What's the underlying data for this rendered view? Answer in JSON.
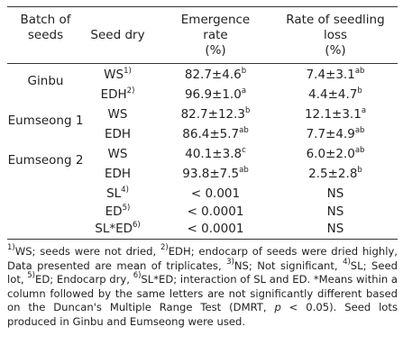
{
  "headers": {
    "batch_l1": "Batch of",
    "batch_l2": "seeds",
    "seed_dry": "Seed dry",
    "emergence_l1": "Emergence",
    "emergence_l2": "rate",
    "emergence_unit": "(%)",
    "loss_l1": "Rate of seedling",
    "loss_l2": "loss",
    "loss_unit": "(%)"
  },
  "rows": [
    {
      "batch": "Ginbu",
      "dry": "WS",
      "dry_sup": "1)",
      "emergence": "82.7±4.6",
      "emergence_sup": "b",
      "loss": "7.4±3.1",
      "loss_sup": "ab"
    },
    {
      "batch": "",
      "dry": "EDH",
      "dry_sup": "2)",
      "emergence": "96.9±1.0",
      "emergence_sup": "a",
      "loss": "4.4±4.7",
      "loss_sup": "b"
    },
    {
      "batch": "Eumseong 1",
      "dry": "WS",
      "dry_sup": "",
      "emergence": "82.7±12.3",
      "emergence_sup": "b",
      "loss": "12.1±3.1",
      "loss_sup": "a"
    },
    {
      "batch": "",
      "dry": "EDH",
      "dry_sup": "",
      "emergence": "86.4±5.7",
      "emergence_sup": "ab",
      "loss": "7.7±4.9",
      "loss_sup": "ab"
    },
    {
      "batch": "Eumseong 2",
      "dry": "WS",
      "dry_sup": "",
      "emergence": "40.1±3.8",
      "emergence_sup": "c",
      "loss": "6.0±2.0",
      "loss_sup": "ab"
    },
    {
      "batch": "",
      "dry": "EDH",
      "dry_sup": "",
      "emergence": "93.8±7.5",
      "emergence_sup": "ab",
      "loss": "2.5±2.8",
      "loss_sup": "b"
    },
    {
      "batch": "",
      "dry": "SL",
      "dry_sup": "4)",
      "emergence": "< 0.001",
      "emergence_sup": "",
      "loss": "NS",
      "loss_sup": ""
    },
    {
      "batch": "",
      "dry": "ED",
      "dry_sup": "5)",
      "emergence": "< 0.0001",
      "emergence_sup": "",
      "loss": "NS",
      "loss_sup": ""
    },
    {
      "batch": "",
      "dry": "SL*ED",
      "dry_sup": "6)",
      "emergence": "< 0.0001",
      "emergence_sup": "",
      "loss": "NS",
      "loss_sup": ""
    }
  ],
  "footnote": {
    "s1": "1)",
    "t1": "WS; seeds were not dried, ",
    "s2": "2)",
    "t2": "EDH; endocarp of seeds were dried highly, Data presented are mean of triplicates, ",
    "s3": "3)",
    "t3": "NS; Not significant, ",
    "s4": "4)",
    "t4": "SL; Seed lot, ",
    "s5": "5)",
    "t5": "ED; Endocarp dry, ",
    "s6": "6)",
    "t6": "SL*ED; interaction of SL and ED. *Means within a column followed by the same letters are not significantly different based on the Duncan's Multiple Range Test (DMRT, ",
    "p": "p",
    "t7": " < 0.05). Seed lots produced in Ginbu and Eumseong were used."
  }
}
